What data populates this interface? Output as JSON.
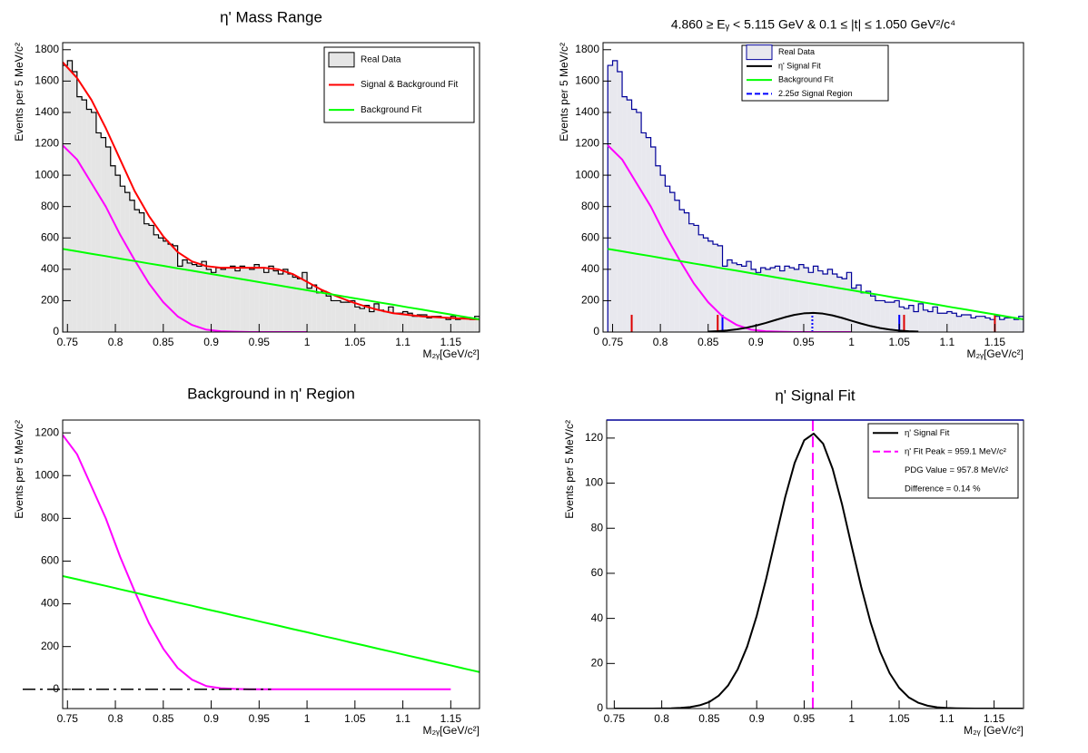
{
  "chart_data": [
    {
      "type": "histogram",
      "title": "η' Mass Range",
      "x_label": "M₂ᵧ[GeV/c²]",
      "y_label": "Events per 5 MeV/c²",
      "xlim": [
        0.745,
        1.18
      ],
      "ylim": [
        0,
        1845
      ],
      "xticks": [
        0.75,
        0.8,
        0.85,
        0.9,
        0.95,
        1,
        1.05,
        1.1,
        1.15
      ],
      "yticks": [
        0,
        200,
        400,
        600,
        800,
        1000,
        1200,
        1400,
        1600,
        1800
      ],
      "hist_name": "Real Data",
      "hist_fill": "#e5e5e5",
      "hist_color": "#000000",
      "bins": [
        0.745,
        0.75,
        0.755,
        0.76,
        0.765,
        0.77,
        0.775,
        0.78,
        0.785,
        0.79,
        0.795,
        0.8,
        0.805,
        0.81,
        0.815,
        0.82,
        0.825,
        0.83,
        0.835,
        0.84,
        0.845,
        0.85,
        0.855,
        0.86,
        0.865,
        0.87,
        0.875,
        0.88,
        0.885,
        0.89,
        0.895,
        0.9,
        0.905,
        0.91,
        0.915,
        0.92,
        0.925,
        0.93,
        0.935,
        0.94,
        0.945,
        0.95,
        0.955,
        0.96,
        0.965,
        0.97,
        0.975,
        0.98,
        0.985,
        0.99,
        0.995,
        1,
        1.005,
        1.01,
        1.015,
        1.02,
        1.025,
        1.03,
        1.035,
        1.04,
        1.045,
        1.05,
        1.055,
        1.06,
        1.065,
        1.07,
        1.075,
        1.08,
        1.085,
        1.09,
        1.095,
        1.1,
        1.105,
        1.11,
        1.115,
        1.12,
        1.125,
        1.13,
        1.135,
        1.14,
        1.145,
        1.15,
        1.155,
        1.16,
        1.165,
        1.17,
        1.175,
        1.18
      ],
      "counts": [
        1700,
        1730,
        1660,
        1500,
        1480,
        1420,
        1400,
        1270,
        1240,
        1180,
        1060,
        1000,
        930,
        890,
        840,
        780,
        760,
        690,
        680,
        620,
        600,
        580,
        560,
        550,
        420,
        460,
        440,
        430,
        420,
        450,
        400,
        380,
        410,
        400,
        410,
        420,
        390,
        420,
        410,
        400,
        430,
        410,
        380,
        420,
        390,
        370,
        400,
        370,
        350,
        340,
        380,
        280,
        300,
        250,
        260,
        230,
        200,
        200,
        190,
        190,
        200,
        160,
        150,
        170,
        130,
        180,
        140,
        130,
        160,
        120,
        120,
        130,
        120,
        100,
        110,
        110,
        90,
        100,
        100,
        90,
        80,
        100,
        80,
        90,
        90,
        80,
        100
      ],
      "series": [
        {
          "color": "#ff00ff",
          "x": [
            0.745,
            0.76,
            0.775,
            0.79,
            0.805,
            0.82,
            0.835,
            0.85,
            0.865,
            0.88,
            0.895,
            0.91,
            0.925,
            0.94,
            0.955,
            0.97,
            0.985,
            1,
            1.015,
            1.03,
            1.045,
            1.06,
            1.075,
            1.09,
            1.105,
            1.12,
            1.135,
            1.15,
            1.165,
            1.18
          ],
          "values": [
            1190,
            1100,
            950,
            800,
            620,
            460,
            310,
            190,
            100,
            45,
            15,
            5,
            2,
            0,
            0,
            0,
            0,
            0,
            null,
            null,
            null,
            null,
            null,
            null,
            null,
            null,
            null,
            null,
            null,
            null
          ]
        },
        {
          "name": "Signal & Background Fit",
          "color": "#ff0000",
          "x": [
            0.745,
            0.76,
            0.775,
            0.79,
            0.805,
            0.82,
            0.835,
            0.85,
            0.865,
            0.88,
            0.895,
            0.91,
            0.925,
            0.94,
            0.955,
            0.97,
            0.985,
            1,
            1.015,
            1.03,
            1.045,
            1.06,
            1.075,
            1.09,
            1.105,
            1.12,
            1.135,
            1.15,
            1.165,
            1.18
          ],
          "values": [
            1720,
            1620,
            1480,
            1300,
            1100,
            900,
            740,
            610,
            510,
            450,
            420,
            410,
            410,
            410,
            410,
            400,
            370,
            320,
            270,
            230,
            195,
            165,
            140,
            120,
            110,
            100,
            95,
            90,
            85,
            80
          ]
        },
        {
          "name": "Background Fit",
          "color": "#00ff00",
          "x": [
            0.745,
            0.76,
            0.775,
            0.79,
            0.805,
            0.82,
            0.835,
            0.85,
            0.865,
            0.88,
            0.895,
            0.91,
            0.925,
            0.94,
            0.955,
            0.97,
            0.985,
            1,
            1.015,
            1.03,
            1.045,
            1.06,
            1.075,
            1.09,
            1.105,
            1.12,
            1.135,
            1.15,
            1.165,
            1.18
          ],
          "values": [
            530,
            515,
            499,
            484,
            468,
            453,
            437,
            422,
            406,
            391,
            375,
            360,
            344,
            329,
            313,
            298,
            282,
            267,
            251,
            236,
            220,
            205,
            189,
            174,
            158,
            143,
            127,
            112,
            96,
            81
          ]
        }
      ]
    },
    {
      "type": "histogram",
      "title": "4.860 ≥ Eᵧ < 5.115 GeV  &  0.1 ≤ |t| ≤ 1.050 GeV²/c⁴",
      "x_label": "M₂ᵧ[GeV/c²]",
      "y_label": "Events per 5 MeV/c²",
      "xlim": [
        0.74,
        1.18
      ],
      "ylim": [
        0,
        1845
      ],
      "xticks": [
        0.75,
        0.8,
        0.85,
        0.9,
        0.95,
        1,
        1.05,
        1.1,
        1.15
      ],
      "yticks": [
        0,
        200,
        400,
        600,
        800,
        1000,
        1200,
        1400,
        1600,
        1800
      ],
      "hist_name": "Real Data",
      "hist_fill": "#e8e8ee",
      "hist_color": "#000099",
      "bins": [
        0.745,
        0.75,
        0.755,
        0.76,
        0.765,
        0.77,
        0.775,
        0.78,
        0.785,
        0.79,
        0.795,
        0.8,
        0.805,
        0.81,
        0.815,
        0.82,
        0.825,
        0.83,
        0.835,
        0.84,
        0.845,
        0.85,
        0.855,
        0.86,
        0.865,
        0.87,
        0.875,
        0.88,
        0.885,
        0.89,
        0.895,
        0.9,
        0.905,
        0.91,
        0.915,
        0.92,
        0.925,
        0.93,
        0.935,
        0.94,
        0.945,
        0.95,
        0.955,
        0.96,
        0.965,
        0.97,
        0.975,
        0.98,
        0.985,
        0.99,
        0.995,
        1,
        1.005,
        1.01,
        1.015,
        1.02,
        1.025,
        1.03,
        1.035,
        1.04,
        1.045,
        1.05,
        1.055,
        1.06,
        1.065,
        1.07,
        1.075,
        1.08,
        1.085,
        1.09,
        1.095,
        1.1,
        1.105,
        1.11,
        1.115,
        1.12,
        1.125,
        1.13,
        1.135,
        1.14,
        1.145,
        1.15,
        1.155,
        1.16,
        1.165,
        1.17,
        1.175,
        1.18
      ],
      "counts": [
        1700,
        1730,
        1660,
        1500,
        1480,
        1420,
        1400,
        1270,
        1240,
        1180,
        1060,
        1000,
        930,
        890,
        840,
        780,
        760,
        690,
        680,
        620,
        600,
        580,
        560,
        550,
        420,
        460,
        440,
        430,
        420,
        450,
        400,
        380,
        410,
        400,
        410,
        420,
        390,
        420,
        410,
        400,
        430,
        410,
        380,
        420,
        390,
        370,
        400,
        370,
        350,
        340,
        380,
        280,
        300,
        250,
        260,
        230,
        200,
        200,
        190,
        190,
        200,
        160,
        150,
        170,
        130,
        180,
        140,
        130,
        160,
        120,
        120,
        130,
        120,
        100,
        110,
        110,
        90,
        100,
        100,
        90,
        80,
        100,
        80,
        90,
        90,
        80,
        100
      ],
      "series": [
        {
          "color": "#ff00ff",
          "x": [
            0.745,
            0.76,
            0.775,
            0.79,
            0.805,
            0.82,
            0.835,
            0.85,
            0.865,
            0.88,
            0.895,
            0.91,
            0.925,
            0.94,
            0.955,
            0.97,
            0.985,
            1,
            1.015,
            1.03,
            1.045,
            1.06,
            1.075,
            1.09,
            1.105,
            1.12,
            1.135,
            1.15,
            1.165,
            1.18
          ],
          "values": [
            1190,
            1100,
            950,
            800,
            620,
            460,
            310,
            190,
            100,
            45,
            15,
            5,
            2,
            0,
            0,
            0,
            0,
            0,
            null,
            null,
            null,
            null,
            null,
            null,
            null,
            null,
            null,
            null,
            null,
            null
          ]
        },
        {
          "name": "η' Signal Fit",
          "color": "#000000",
          "x": [
            0.85,
            0.86,
            0.87,
            0.88,
            0.89,
            0.9,
            0.91,
            0.92,
            0.93,
            0.94,
            0.95,
            0.96,
            0.97,
            0.98,
            0.99,
            1,
            1.01,
            1.02,
            1.03,
            1.04,
            1.05,
            1.06,
            1.07
          ],
          "values": [
            2.9,
            5.7,
            10.3,
            17.4,
            27.5,
            41.1,
            57.6,
            75.8,
            93.8,
            109,
            119,
            122,
            117.5,
            106.3,
            90.4,
            72,
            54.1,
            38.1,
            25.2,
            15.7,
            9.2,
            5,
            2.6
          ]
        },
        {
          "name": "Background Fit",
          "color": "#00ff00",
          "x": [
            0.745,
            0.76,
            0.775,
            0.79,
            0.805,
            0.82,
            0.835,
            0.85,
            0.865,
            0.88,
            0.895,
            0.91,
            0.925,
            0.94,
            0.955,
            0.97,
            0.985,
            1,
            1.015,
            1.03,
            1.045,
            1.06,
            1.075,
            1.09,
            1.105,
            1.12,
            1.135,
            1.15,
            1.165,
            1.18
          ],
          "values": [
            530,
            515,
            499,
            484,
            468,
            453,
            437,
            422,
            406,
            391,
            375,
            360,
            344,
            329,
            313,
            298,
            282,
            267,
            251,
            236,
            220,
            205,
            189,
            174,
            158,
            143,
            127,
            112,
            96,
            81
          ]
        }
      ],
      "regions": [
        {
          "name": "2.25σ Signal Region",
          "color": "#0000ff",
          "edges": [
            0.865,
            1.05
          ],
          "height": 110
        },
        {
          "color": "#dd0000",
          "edges": [
            0.77,
            0.86,
            1.055,
            1.15
          ],
          "height": 110
        }
      ],
      "peak_marker": {
        "x": 0.959,
        "height": 130,
        "color": "#0000ff"
      }
    },
    {
      "type": "line",
      "title": "Background in η' Region",
      "x_label": "M₂ᵧ[GeV/c²]",
      "y_label": "Events per 5 MeV/c²",
      "xlim": [
        0.745,
        1.18
      ],
      "ylim": [
        -90,
        1260
      ],
      "xticks": [
        0.75,
        0.8,
        0.85,
        0.9,
        0.95,
        1,
        1.05,
        1.1,
        1.15
      ],
      "yticks": [
        0,
        200,
        400,
        600,
        800,
        1000,
        1200
      ],
      "zero_line": true,
      "series": [
        {
          "color": "#ff00ff",
          "x": [
            0.745,
            0.76,
            0.775,
            0.79,
            0.805,
            0.82,
            0.835,
            0.85,
            0.865,
            0.88,
            0.895,
            0.91,
            0.925,
            0.94,
            0.955,
            0.97,
            0.985,
            1,
            1.015,
            1.03,
            1.045,
            1.06,
            1.075,
            1.09,
            1.105,
            1.12,
            1.135,
            1.15,
            1.165,
            1.18
          ],
          "values": [
            1190,
            1100,
            950,
            800,
            620,
            460,
            310,
            190,
            100,
            45,
            15,
            5,
            2,
            0,
            0,
            0,
            0,
            0,
            0,
            0,
            0,
            0,
            0,
            0,
            0,
            0,
            0,
            0,
            null,
            null
          ]
        },
        {
          "color": "#00ff00",
          "x": [
            0.745,
            0.76,
            0.775,
            0.79,
            0.805,
            0.82,
            0.835,
            0.85,
            0.865,
            0.88,
            0.895,
            0.91,
            0.925,
            0.94,
            0.955,
            0.97,
            0.985,
            1,
            1.015,
            1.03,
            1.045,
            1.06,
            1.075,
            1.09,
            1.105,
            1.12,
            1.135,
            1.15,
            1.165,
            1.18
          ],
          "values": [
            530,
            515,
            499,
            484,
            468,
            453,
            437,
            422,
            406,
            391,
            375,
            360,
            344,
            329,
            313,
            298,
            282,
            267,
            251,
            236,
            220,
            205,
            189,
            174,
            158,
            143,
            127,
            112,
            96,
            81
          ]
        }
      ]
    },
    {
      "type": "line",
      "title": "η' Signal Fit",
      "x_label": "M₂ᵧ [GeV/c²]",
      "y_label": "Events per 5 MeV/c²",
      "xlim": [
        0.742,
        1.181
      ],
      "ylim": [
        0,
        128
      ],
      "xticks": [
        0.75,
        0.8,
        0.85,
        0.9,
        0.95,
        1,
        1.05,
        1.1,
        1.15
      ],
      "yticks": [
        0,
        20,
        40,
        60,
        80,
        100,
        120
      ],
      "series": [
        {
          "name": "η' Signal Fit",
          "color": "#000000",
          "x": [
            0.75,
            0.76,
            0.77,
            0.78,
            0.79,
            0.8,
            0.81,
            0.82,
            0.83,
            0.84,
            0.85,
            0.86,
            0.87,
            0.88,
            0.89,
            0.9,
            0.91,
            0.92,
            0.93,
            0.94,
            0.95,
            0.96,
            0.97,
            0.98,
            0.99,
            1,
            1.01,
            1.02,
            1.03,
            1.04,
            1.05,
            1.06,
            1.07,
            1.08,
            1.09,
            1.1,
            1.11,
            1.12,
            1.13,
            1.14,
            1.15,
            1.16,
            1.17,
            1.18
          ],
          "values": [
            0,
            0,
            0,
            0.01,
            0.02,
            0.05,
            0.12,
            0.29,
            0.67,
            1.45,
            2.9,
            5.7,
            10.3,
            17.4,
            27.5,
            41.1,
            57.6,
            75.8,
            93.8,
            109,
            119,
            122,
            117.5,
            106.3,
            90.4,
            72,
            54.1,
            38.1,
            25.2,
            15.7,
            9.2,
            5,
            2.6,
            1.26,
            0.57,
            0.24,
            0.1,
            0.03,
            0,
            0,
            0,
            0,
            0,
            0
          ]
        }
      ],
      "peak_line": {
        "name": "η' Fit Peak = 959.1 MeV/c²",
        "x": 0.9591,
        "color": "#ff00ff"
      },
      "legend_notes": [
        "PDG Value = 957.8 MeV/c²",
        "Difference = 0.14 %"
      ]
    }
  ]
}
